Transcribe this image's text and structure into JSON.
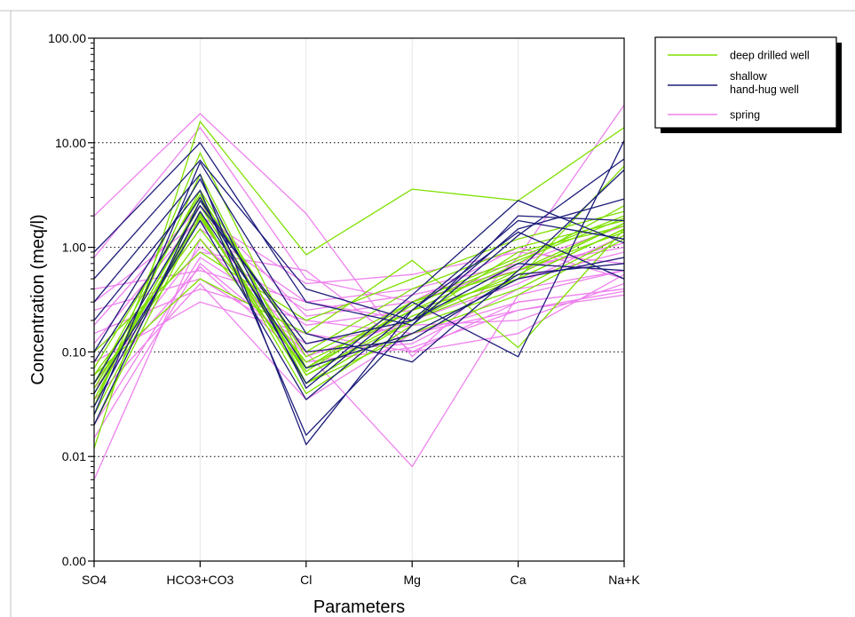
{
  "chart_data": {
    "type": "line",
    "title": "",
    "xlabel": "Parameters",
    "ylabel": "Concentration (meq/l)",
    "y_scale": "log",
    "ylim": [
      0.001,
      100
    ],
    "grid": "horizontal dotted at decades",
    "legend_placement": "outside-top-right",
    "categories": [
      "SO4",
      "HCO3+CO3",
      "Cl",
      "Mg",
      "Ca",
      "Na+K"
    ],
    "y_ticks": [
      0.001,
      0.01,
      0.1,
      1,
      10,
      100
    ],
    "y_tick_labels": [
      "0.00",
      "0.01",
      "0.10",
      "1.00",
      "10.00",
      "100.00"
    ],
    "legend": [
      {
        "label": "deep drilled well",
        "color": "#7fe000"
      },
      {
        "label_lines": [
          "shallow",
          "hand-hug well"
        ],
        "color": "#1c1c7a"
      },
      {
        "label": "spring",
        "color": "#ee82ee"
      }
    ],
    "series": [
      {
        "group": "deep drilled well",
        "color": "#7fe000",
        "lines": [
          [
            0.012,
            16,
            0.85,
            3.6,
            2.8,
            14
          ],
          [
            0.03,
            8,
            0.07,
            0.25,
            0.5,
            1.5
          ],
          [
            0.05,
            3.5,
            0.09,
            0.3,
            0.8,
            2
          ],
          [
            0.04,
            2.5,
            0.06,
            0.2,
            0.6,
            1.7
          ],
          [
            0.02,
            2,
            0.05,
            0.15,
            0.5,
            1.5
          ],
          [
            0.06,
            1.5,
            0.08,
            0.25,
            0.7,
            2.5
          ],
          [
            0.08,
            3,
            0.1,
            0.4,
            1,
            1.8
          ],
          [
            0.03,
            5,
            0.05,
            0.2,
            0.9,
            1.6
          ],
          [
            0.05,
            1.2,
            0.07,
            0.3,
            0.6,
            1.4
          ],
          [
            0.1,
            0.9,
            0.2,
            0.5,
            1.2,
            2.2
          ],
          [
            0.025,
            2.2,
            0.04,
            0.18,
            0.4,
            1.3
          ],
          [
            0.035,
            2.8,
            0.06,
            0.22,
            0.55,
            1.7
          ],
          [
            0.045,
            1.9,
            0.065,
            0.28,
            0.75,
            1.9
          ],
          [
            0.07,
            3.2,
            0.07,
            0.15,
            0.35,
            1.2
          ],
          [
            0.06,
            0.5,
            0.15,
            0.75,
            0.11,
            1.5
          ],
          [
            0.04,
            2.1,
            0.05,
            0.2,
            0.5,
            6
          ]
        ]
      },
      {
        "group": "shallow hand-hug well",
        "color": "#1c1c7a",
        "lines": [
          [
            0.9,
            10,
            0.3,
            0.18,
            2.0,
            1.8
          ],
          [
            0.5,
            6.8,
            0.4,
            0.2,
            1.5,
            2.9
          ],
          [
            0.3,
            5,
            0.013,
            0.25,
            1.8,
            1.2
          ],
          [
            0.2,
            3.5,
            0.016,
            0.18,
            1.3,
            7
          ],
          [
            0.1,
            4.5,
            0.045,
            0.3,
            0.09,
            10.5
          ],
          [
            0.08,
            3,
            0.05,
            0.35,
            2.8,
            1.1
          ],
          [
            0.05,
            2.5,
            0.12,
            0.2,
            0.7,
            0.6
          ],
          [
            0.03,
            2.2,
            0.07,
            0.15,
            0.5,
            0.8
          ],
          [
            0.025,
            6.5,
            0.15,
            0.08,
            0.6,
            5.5
          ],
          [
            0.04,
            1.8,
            0.035,
            0.25,
            1.4,
            0.5
          ],
          [
            0.02,
            2.8,
            0.1,
            0.13,
            0.55,
            0.7
          ]
        ]
      },
      {
        "group": "spring",
        "color": "#ee82ee",
        "lines": [
          [
            2.0,
            19,
            2.1,
            0.09,
            0.8,
            23
          ],
          [
            0.8,
            14,
            0.5,
            0.3,
            1.0,
            0.5
          ],
          [
            0.4,
            0.6,
            0.3,
            0.2,
            0.5,
            0.8
          ],
          [
            0.3,
            1.8,
            0.1,
            0.008,
            0.35,
            0.6
          ],
          [
            0.15,
            0.4,
            0.2,
            0.15,
            0.25,
            0.35
          ],
          [
            0.08,
            0.3,
            0.15,
            0.1,
            0.3,
            0.4
          ],
          [
            0.05,
            1.0,
            0.25,
            0.35,
            0.6,
            1.1
          ],
          [
            0.015,
            0.7,
            0.1,
            0.12,
            0.4,
            0.6
          ],
          [
            0.02,
            0.8,
            0.18,
            0.25,
            0.5,
            0.9
          ],
          [
            0.06,
            1.5,
            0.3,
            0.4,
            0.7,
            1.6
          ],
          [
            0.12,
            2.0,
            0.45,
            0.55,
            0.9,
            0.7
          ],
          [
            0.25,
            0.5,
            0.12,
            0.18,
            0.2,
            0.45
          ],
          [
            0.035,
            0.45,
            0.035,
            0.15,
            0.3,
            0.4
          ],
          [
            0.006,
            1.2,
            0.09,
            0.2,
            0.45,
            1.3
          ],
          [
            0.1,
            0.9,
            0.6,
            0.1,
            0.15,
            0.55
          ],
          [
            0.18,
            2.5,
            0.22,
            0.3,
            0.65,
            1.0
          ],
          [
            0.045,
            0.65,
            0.08,
            0.11,
            0.25,
            0.38
          ]
        ]
      }
    ]
  }
}
